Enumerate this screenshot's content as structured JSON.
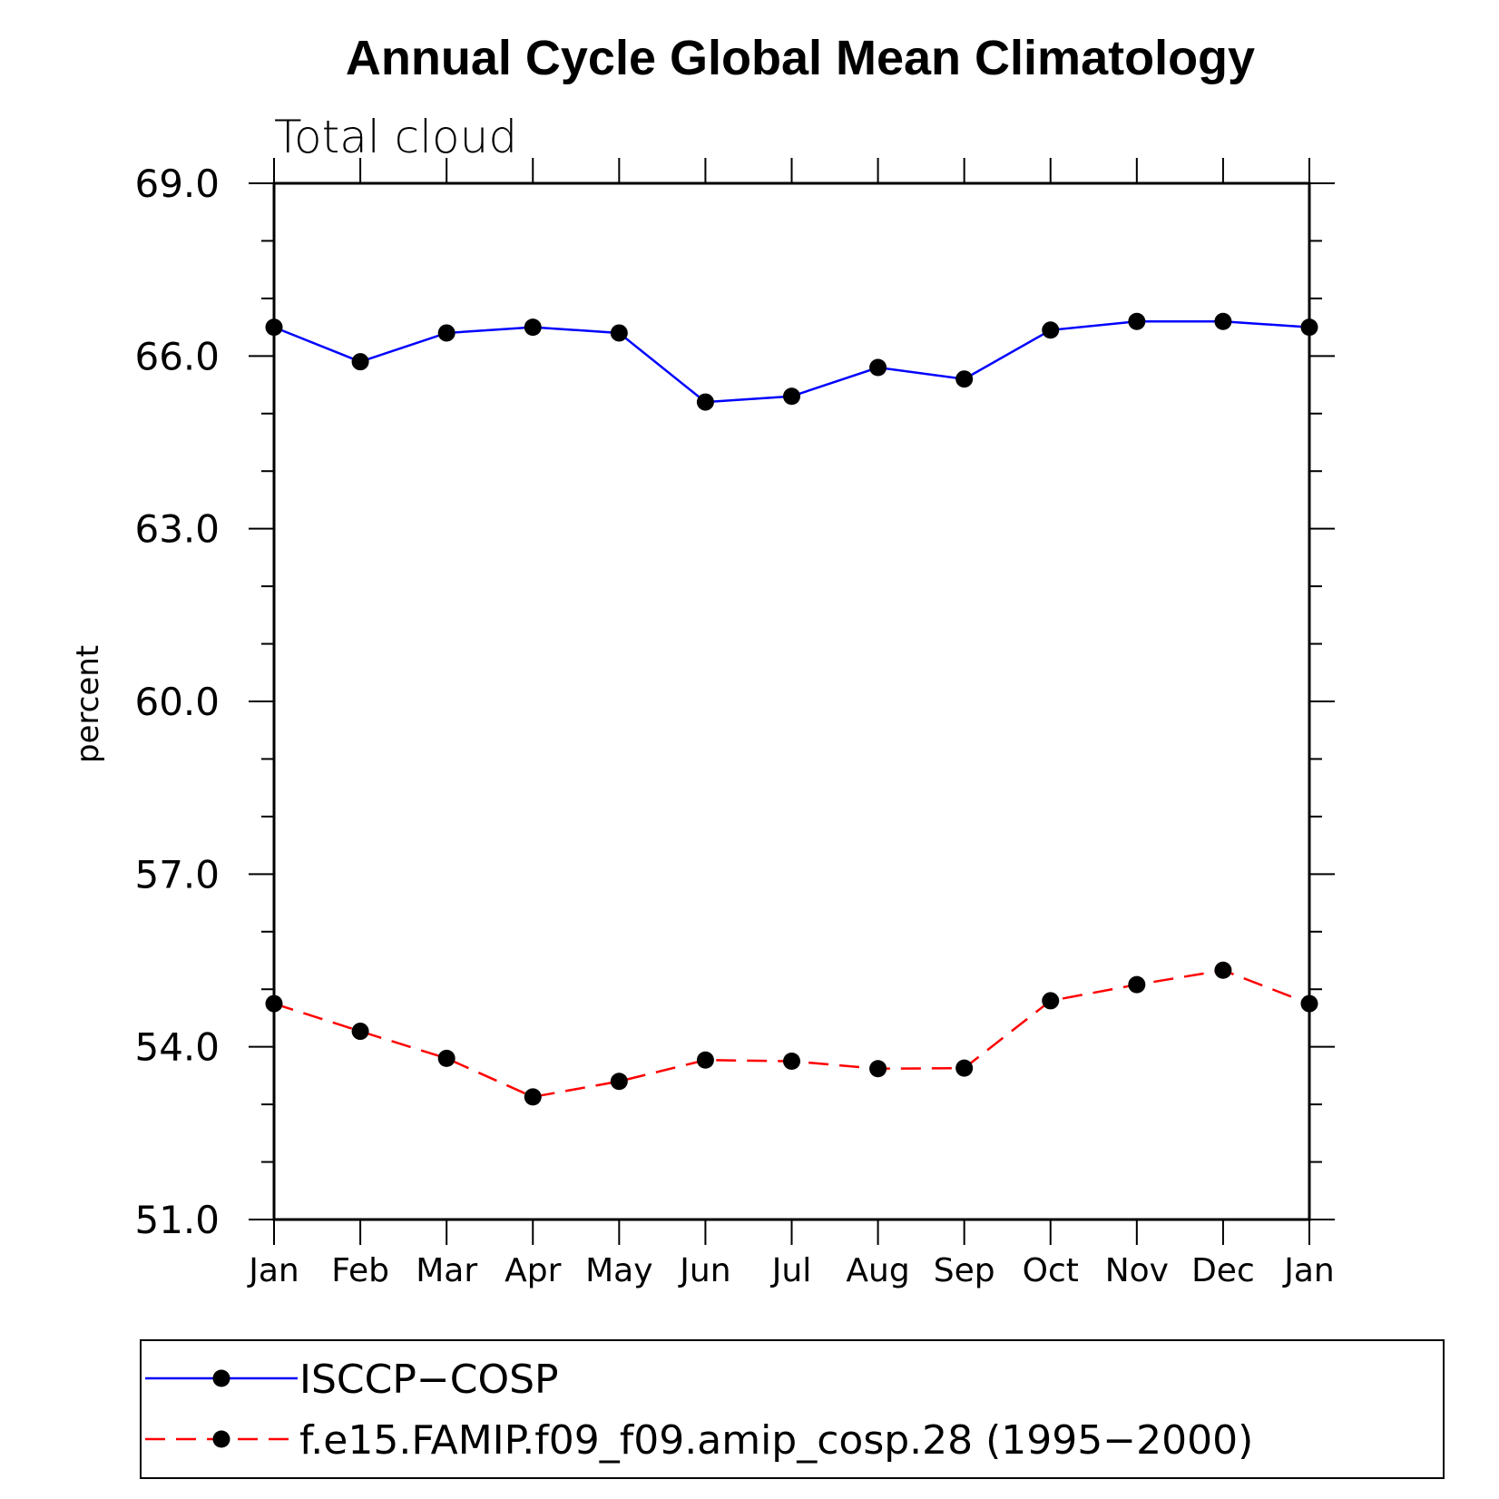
{
  "chart_data": {
    "type": "line",
    "title": "Annual Cycle Global Mean Climatology",
    "subtitle": "Total cloud",
    "xlabel": "",
    "ylabel": "percent",
    "categories": [
      "Jan",
      "Feb",
      "Mar",
      "Apr",
      "May",
      "Jun",
      "Jul",
      "Aug",
      "Sep",
      "Oct",
      "Nov",
      "Dec",
      "Jan"
    ],
    "ylim": [
      51.0,
      69.0
    ],
    "yticks": [
      "51.0",
      "54.0",
      "57.0",
      "60.0",
      "63.0",
      "66.0",
      "69.0"
    ],
    "series": [
      {
        "name": "ISCCP−COSP",
        "color": "#0000ff",
        "dash": "solid",
        "values": [
          66.5,
          65.9,
          66.4,
          66.5,
          66.4,
          65.2,
          65.3,
          65.8,
          65.6,
          66.45,
          66.6,
          66.6,
          66.5
        ]
      },
      {
        "name": "f.e15.FAMIP.f09_f09.amip_cosp.28 (1995−2000)",
        "color": "#ff0000",
        "dash": "dashed",
        "values": [
          54.75,
          54.27,
          53.8,
          53.13,
          53.4,
          53.77,
          53.75,
          53.62,
          53.63,
          54.8,
          55.08,
          55.33,
          54.75
        ]
      }
    ],
    "markers": "filled-circle-black",
    "grid": false,
    "legend_position": "bottom"
  }
}
